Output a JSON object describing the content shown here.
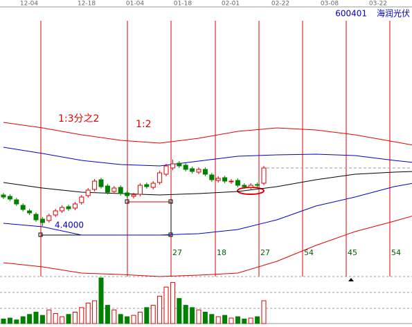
{
  "chart_data": {
    "type": "candlestick",
    "title": "600401",
    "subtitle": "海润光伏",
    "date_labels": [
      "12-04",
      "12-18",
      "01-04",
      "01-18",
      "02-01",
      "02-22",
      "03-08",
      "03-22"
    ],
    "annotations": [
      "1:3分之2",
      "1:2",
      "4.4000"
    ],
    "cycle_labels": [
      "27",
      "18",
      "27",
      "54",
      "45",
      "54"
    ],
    "ylim": [
      3.67,
      7.57
    ],
    "xlim": [
      0,
      63
    ],
    "up_color": "#e00000",
    "down_color": "#008000",
    "candles": {
      "open": [
        4.85,
        4.83,
        4.78,
        4.7,
        4.62,
        4.57,
        4.5,
        4.48,
        4.56,
        4.62,
        4.68,
        4.66,
        4.74,
        4.84,
        4.93,
        5.07,
        4.98,
        4.9,
        4.96,
        4.88,
        4.83,
        4.86,
        5.0,
        4.96,
        5.03,
        5.15,
        5.24,
        5.31,
        5.28,
        5.23,
        5.18,
        5.22,
        5.14,
        5.06,
        5.1,
        5.04,
        5.06,
        4.99,
        4.96,
        5.0,
        5.02
      ],
      "close": [
        4.82,
        4.79,
        4.72,
        4.64,
        4.59,
        4.49,
        4.45,
        4.55,
        4.62,
        4.67,
        4.65,
        4.72,
        4.82,
        4.92,
        5.05,
        4.97,
        4.89,
        4.95,
        4.87,
        4.84,
        4.85,
        4.99,
        4.97,
        5.02,
        5.17,
        5.27,
        5.3,
        5.27,
        5.22,
        5.19,
        5.22,
        5.15,
        5.07,
        5.09,
        5.05,
        5.05,
        4.99,
        4.97,
        4.99,
        4.99,
        5.24
      ],
      "high": [
        4.88,
        4.86,
        4.81,
        4.73,
        4.65,
        4.6,
        4.53,
        4.58,
        4.65,
        4.7,
        4.71,
        4.75,
        4.85,
        4.95,
        5.08,
        5.1,
        5.01,
        4.98,
        4.99,
        4.91,
        4.88,
        5.02,
        5.03,
        5.05,
        5.2,
        5.3,
        5.36,
        5.34,
        5.31,
        5.26,
        5.25,
        5.25,
        5.17,
        5.12,
        5.13,
        5.08,
        5.09,
        5.02,
        5.02,
        5.03,
        5.27
      ],
      "low": [
        4.79,
        4.76,
        4.69,
        4.61,
        4.56,
        4.46,
        4.4,
        4.45,
        4.53,
        4.59,
        4.62,
        4.63,
        4.71,
        4.81,
        4.9,
        4.94,
        4.86,
        4.87,
        4.84,
        4.81,
        4.8,
        4.83,
        4.94,
        4.93,
        5.0,
        5.12,
        5.21,
        5.24,
        5.19,
        5.16,
        5.15,
        5.12,
        5.04,
        5.03,
        5.02,
        5.01,
        4.96,
        4.94,
        4.93,
        4.96,
        4.99
      ]
    },
    "volume": {
      "values": [
        10,
        12,
        8,
        15,
        20,
        25,
        18,
        30,
        22,
        15,
        20,
        25,
        35,
        45,
        50,
        100,
        40,
        30,
        20,
        15,
        18,
        25,
        35,
        40,
        60,
        80,
        90,
        55,
        40,
        35,
        30,
        25,
        20,
        15,
        18,
        12,
        15,
        10,
        12,
        15,
        50
      ],
      "ylim": [
        0,
        100
      ]
    },
    "bands": {
      "x": [
        0,
        6,
        12,
        18,
        24,
        30,
        36,
        42,
        48,
        54,
        60,
        63
      ],
      "series": [
        {
          "color": "#e00000",
          "values": [
            5.9,
            5.82,
            5.72,
            5.64,
            5.6,
            5.67,
            5.77,
            5.82,
            5.79,
            5.72,
            5.62,
            5.57
          ]
        },
        {
          "color": "#0000c8",
          "values": [
            5.54,
            5.45,
            5.35,
            5.29,
            5.27,
            5.34,
            5.41,
            5.43,
            5.44,
            5.42,
            5.35,
            5.32
          ]
        },
        {
          "color": "#000000",
          "values": [
            5.03,
            4.95,
            4.89,
            4.87,
            4.85,
            4.87,
            4.9,
            4.97,
            5.07,
            5.15,
            5.18,
            5.19
          ]
        },
        {
          "color": "#0000c8",
          "values": [
            4.44,
            4.39,
            4.27,
            4.27,
            4.27,
            4.29,
            4.35,
            4.49,
            4.69,
            4.82,
            4.97,
            5.02
          ]
        },
        {
          "color": "#e00000",
          "values": [
            3.87,
            3.81,
            3.72,
            3.7,
            3.67,
            3.69,
            3.72,
            3.89,
            4.12,
            4.32,
            4.47,
            4.55
          ]
        }
      ]
    }
  }
}
